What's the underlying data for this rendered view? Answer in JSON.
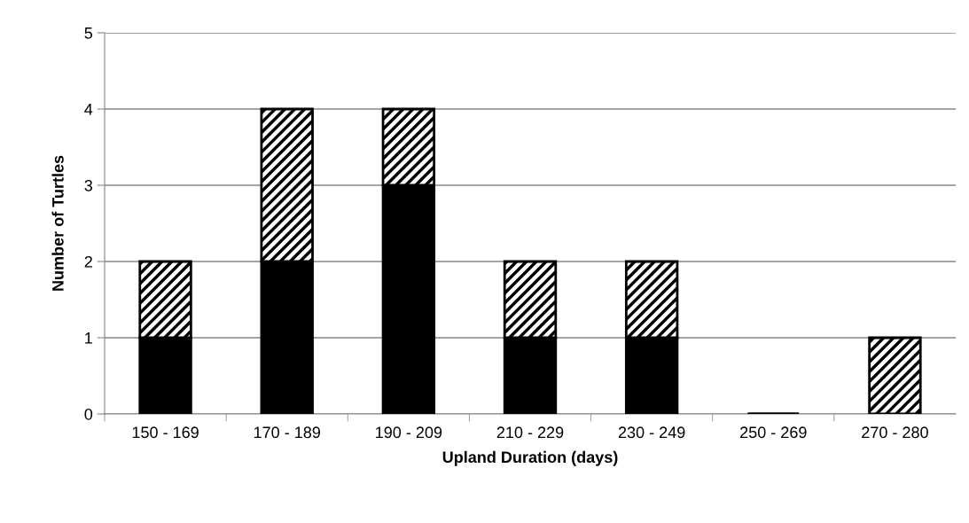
{
  "chart_data": {
    "type": "bar",
    "stacked": true,
    "xlabel": "Upland Duration (days)",
    "ylabel": "Number of Turtles",
    "categories": [
      "150 - 169",
      "170 - 189",
      "190 - 209",
      "210 - 229",
      "230 - 249",
      "250 - 269",
      "270 - 280"
    ],
    "series": [
      {
        "color": "#000000",
        "values": [
          1,
          2,
          3,
          1,
          1,
          0,
          0
        ]
      },
      {
        "color": "#000000",
        "values": [
          1,
          2,
          1,
          1,
          1,
          0,
          1
        ]
      }
    ],
    "ylim": [
      0,
      5
    ],
    "yticks": [
      0,
      1,
      2,
      3,
      4,
      5
    ],
    "grid": "y"
  }
}
